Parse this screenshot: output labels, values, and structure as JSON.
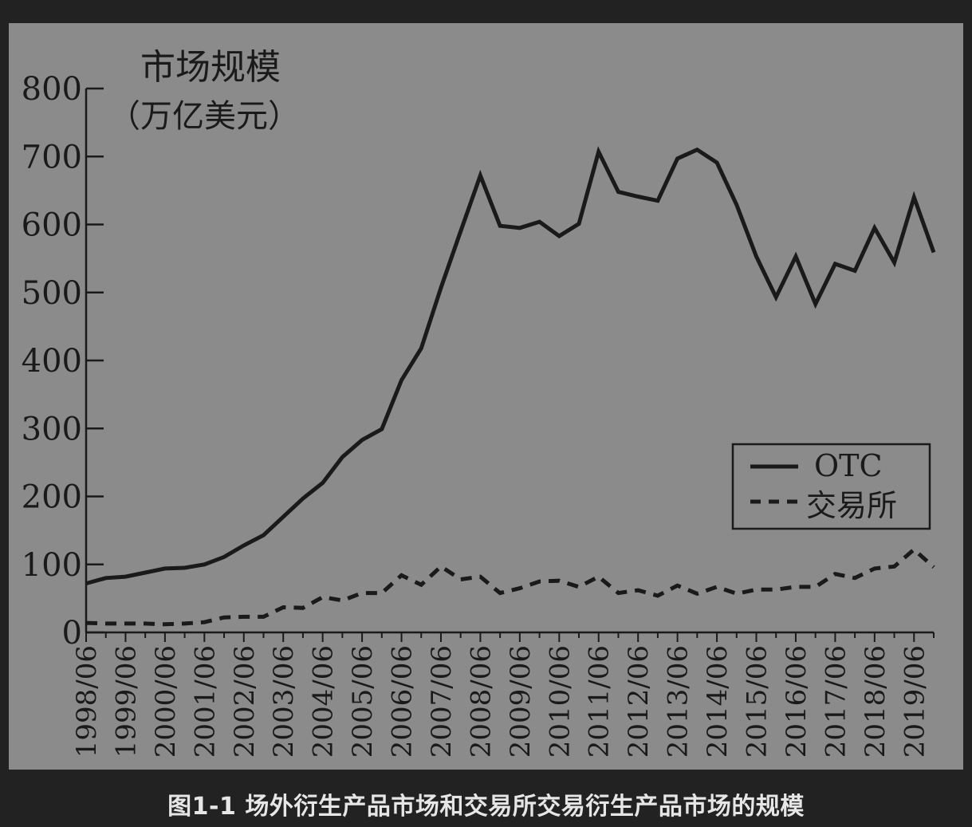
{
  "caption": "图1-1 场外衍生产品市场和交易所交易衍生产品市场的规模",
  "chart_data": {
    "type": "line",
    "ylabel_line1": "市场规模",
    "ylabel_line2": "（万亿美元）",
    "ylim": [
      0,
      800
    ],
    "yticks": [
      0,
      100,
      200,
      300,
      400,
      500,
      600,
      700,
      800
    ],
    "xtick_labels": [
      "1998/06",
      "1999/06",
      "2000/06",
      "2001/06",
      "2002/06",
      "2003/06",
      "2004/06",
      "2005/06",
      "2006/06",
      "2007/06",
      "2008/06",
      "2009/06",
      "2010/06",
      "2011/06",
      "2012/06",
      "2013/06",
      "2014/06",
      "2015/06",
      "2016/06",
      "2017/06",
      "2018/06",
      "2019/06"
    ],
    "x": [
      "1998/06",
      "1998/12",
      "1999/06",
      "1999/12",
      "2000/06",
      "2000/12",
      "2001/06",
      "2001/12",
      "2002/06",
      "2002/12",
      "2003/06",
      "2003/12",
      "2004/06",
      "2004/12",
      "2005/06",
      "2005/12",
      "2006/06",
      "2006/12",
      "2007/06",
      "2007/12",
      "2008/06",
      "2008/12",
      "2009/06",
      "2009/12",
      "2010/06",
      "2010/12",
      "2011/06",
      "2011/12",
      "2012/06",
      "2012/12",
      "2013/06",
      "2013/12",
      "2014/06",
      "2014/12",
      "2015/06",
      "2015/12",
      "2016/06",
      "2016/12",
      "2017/06",
      "2017/12",
      "2018/06",
      "2018/12",
      "2019/06",
      "2019/12"
    ],
    "series": [
      {
        "name": "OTC",
        "style": "solid",
        "values": [
          72,
          80,
          82,
          88,
          94,
          95,
          100,
          111,
          128,
          143,
          170,
          197,
          220,
          258,
          283,
          299,
          371,
          418,
          507,
          590,
          672,
          598,
          595,
          604,
          583,
          601,
          707,
          648,
          641,
          635,
          697,
          710,
          691,
          629,
          553,
          493,
          553,
          483,
          542,
          532,
          595,
          544,
          640,
          559
        ]
      },
      {
        "name": "交易所",
        "style": "dashed",
        "values": [
          14,
          13,
          13,
          13,
          12,
          13,
          15,
          22,
          23,
          23,
          37,
          36,
          52,
          47,
          58,
          58,
          84,
          70,
          97,
          78,
          82,
          58,
          65,
          75,
          76,
          67,
          82,
          58,
          62,
          54,
          69,
          57,
          67,
          57,
          63,
          63,
          67,
          67,
          86,
          80,
          94,
          97,
          122,
          96
        ]
      }
    ],
    "legend": {
      "position": "right-middle",
      "entries": [
        "OTC",
        "交易所"
      ]
    },
    "grid": false,
    "colors": {
      "background": "#8b8b8b",
      "line": "#1a1a1a",
      "page": "#222222"
    }
  }
}
